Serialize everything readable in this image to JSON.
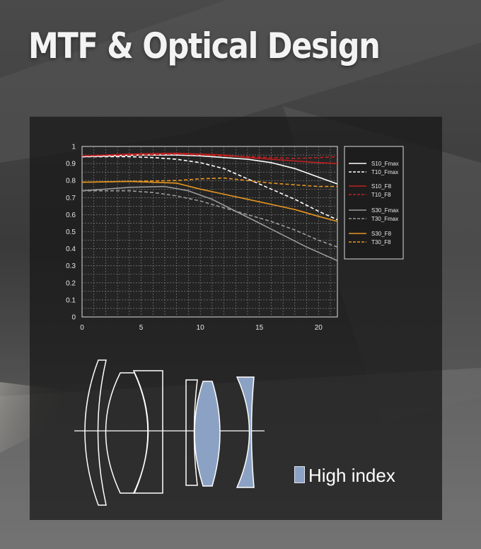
{
  "header": {
    "title": "MTF & Optical Design"
  },
  "legend_note": {
    "label": "High index",
    "color": "#8ca2c4"
  },
  "chart_data": {
    "type": "line",
    "title": "",
    "xlabel": "",
    "ylabel": "",
    "xlim": [
      0,
      21.6
    ],
    "ylim": [
      0,
      1
    ],
    "xticks": [
      0,
      5,
      10,
      15,
      20
    ],
    "yticks": [
      0,
      0.1,
      0.2,
      0.3,
      0.4,
      0.5,
      0.6,
      0.7,
      0.8,
      0.9,
      1
    ],
    "grid": true,
    "legend_position": "right",
    "series": [
      {
        "name": "S10_Fmax",
        "color": "#ffffff",
        "dash": false,
        "x": [
          0,
          5,
          8,
          10,
          12,
          14,
          16,
          18,
          20,
          21.6
        ],
        "y": [
          0.94,
          0.95,
          0.95,
          0.945,
          0.935,
          0.925,
          0.905,
          0.87,
          0.82,
          0.78
        ]
      },
      {
        "name": "T10_Fmax",
        "color": "#ffffff",
        "dash": true,
        "x": [
          0,
          4,
          6,
          8,
          10,
          12,
          14,
          16,
          18,
          20,
          21.6
        ],
        "y": [
          0.94,
          0.94,
          0.935,
          0.925,
          0.905,
          0.87,
          0.81,
          0.75,
          0.69,
          0.62,
          0.57
        ]
      },
      {
        "name": "S10_F8",
        "color": "#c41e1e",
        "dash": false,
        "x": [
          0,
          4,
          8,
          10,
          12,
          14,
          16,
          18,
          20,
          21.6
        ],
        "y": [
          0.945,
          0.955,
          0.96,
          0.955,
          0.95,
          0.935,
          0.925,
          0.915,
          0.905,
          0.9
        ]
      },
      {
        "name": "T10_F8",
        "color": "#c41e1e",
        "dash": true,
        "x": [
          0,
          4,
          8,
          10,
          12,
          14,
          16,
          18,
          20,
          21.6
        ],
        "y": [
          0.945,
          0.95,
          0.955,
          0.95,
          0.945,
          0.94,
          0.935,
          0.93,
          0.935,
          0.94
        ]
      },
      {
        "name": "S30_Fmax",
        "color": "#9a9a9a",
        "dash": false,
        "x": [
          0,
          4,
          7,
          9,
          11,
          13,
          15,
          17,
          19,
          21.6
        ],
        "y": [
          0.74,
          0.76,
          0.765,
          0.74,
          0.69,
          0.62,
          0.55,
          0.48,
          0.41,
          0.33
        ]
      },
      {
        "name": "T30_Fmax",
        "color": "#9a9a9a",
        "dash": true,
        "x": [
          0,
          4,
          6,
          8,
          10,
          12,
          14,
          16,
          18,
          20,
          21.6
        ],
        "y": [
          0.74,
          0.74,
          0.73,
          0.71,
          0.68,
          0.64,
          0.6,
          0.56,
          0.51,
          0.45,
          0.41
        ]
      },
      {
        "name": "S30_F8",
        "color": "#e8951f",
        "dash": false,
        "x": [
          0,
          4,
          8,
          10,
          12,
          14,
          16,
          18,
          20,
          21.6
        ],
        "y": [
          0.79,
          0.795,
          0.785,
          0.75,
          0.72,
          0.69,
          0.66,
          0.63,
          0.59,
          0.56
        ]
      },
      {
        "name": "T30_F8",
        "color": "#e8951f",
        "dash": true,
        "x": [
          0,
          4,
          8,
          10,
          12,
          14,
          16,
          18,
          20,
          21.6
        ],
        "y": [
          0.79,
          0.795,
          0.8,
          0.81,
          0.815,
          0.8,
          0.785,
          0.775,
          0.765,
          0.765
        ]
      }
    ]
  }
}
